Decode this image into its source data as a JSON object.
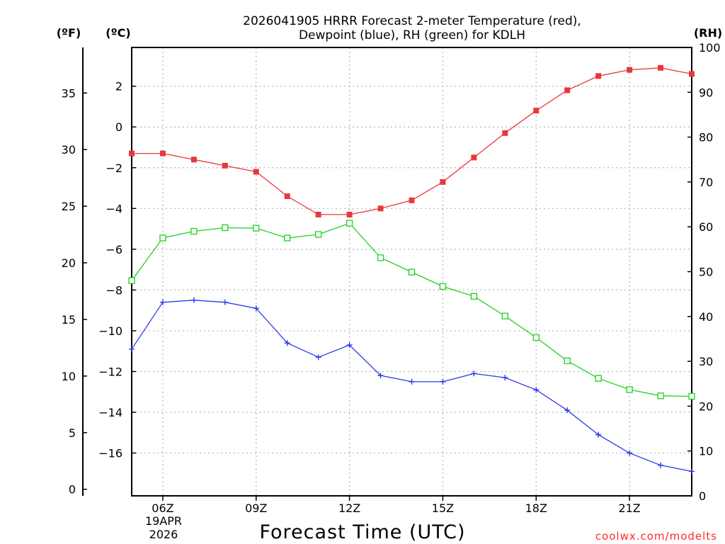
{
  "chart_data": {
    "type": "line",
    "title_line1": "2026041905 HRRR Forecast 2-meter Temperature (red),",
    "title_line2": "Dewpoint (blue), RH (green) for KDLH",
    "xlabel": "Forecast Time (UTC)",
    "credit": "coolwx.com/modelts",
    "units": {
      "fahrenheit": "(ºF)",
      "celsius": "(ºC)",
      "rh": "(RH)"
    },
    "x": [
      5,
      6,
      7,
      8,
      9,
      10,
      11,
      12,
      13,
      14,
      15,
      16,
      17,
      18,
      19,
      20,
      21,
      22,
      23
    ],
    "xlim": [
      5,
      23
    ],
    "x_ticks": [
      {
        "x": 6,
        "label": "06Z"
      },
      {
        "x": 9,
        "label": "09Z"
      },
      {
        "x": 12,
        "label": "12Z"
      },
      {
        "x": 15,
        "label": "15Z"
      },
      {
        "x": 18,
        "label": "18Z"
      },
      {
        "x": 21,
        "label": "21Z"
      }
    ],
    "date_line1": "19APR",
    "date_line2": "2026",
    "ylim_c": [
      -18.1,
      3.9
    ],
    "c_ticks": [
      2,
      0,
      -2,
      -4,
      -6,
      -8,
      -10,
      -12,
      -14,
      -16
    ],
    "c_tick_labels": [
      "2",
      "0",
      "−2",
      "−4",
      "−6",
      "−8",
      "−10",
      "−12",
      "−14",
      "−16"
    ],
    "f_ticks": [
      35,
      30,
      25,
      20,
      15,
      10,
      5,
      0
    ],
    "ylim_rh": [
      0,
      100
    ],
    "rh_ticks": [
      100,
      90,
      80,
      70,
      60,
      50,
      40,
      30,
      20,
      10,
      0
    ],
    "series": [
      {
        "name": "Temperature",
        "color": "#e8383d",
        "axis": "celsius",
        "marker": "filled-square",
        "values": [
          -1.3,
          -1.3,
          -1.6,
          -1.9,
          -2.2,
          -3.4,
          -4.3,
          -4.3,
          -4.0,
          -3.6,
          -2.7,
          -1.5,
          -0.3,
          0.8,
          1.8,
          2.5,
          2.8,
          2.9,
          2.6
        ]
      },
      {
        "name": "Dewpoint",
        "color": "#2a39e8",
        "axis": "celsius",
        "marker": "plus",
        "values": [
          -10.9,
          -8.6,
          -8.5,
          -8.6,
          -8.9,
          -10.6,
          -11.3,
          -10.7,
          -12.2,
          -12.5,
          -12.5,
          -12.1,
          -12.3,
          -12.9,
          -13.9,
          -15.1,
          -16.0,
          -16.6,
          -16.9
        ]
      },
      {
        "name": "RH",
        "color": "#1fd11f",
        "axis": "rh",
        "marker": "open-square",
        "values": [
          48,
          57.5,
          59,
          59.8,
          59.7,
          57.5,
          58.3,
          60.8,
          53.1,
          49.9,
          46.7,
          44.5,
          40.1,
          35.3,
          30.1,
          26.2,
          23.7,
          22.3,
          22.2
        ]
      }
    ]
  }
}
